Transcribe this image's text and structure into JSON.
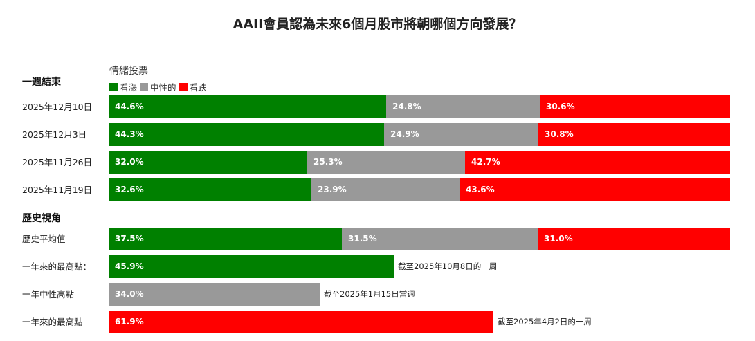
{
  "colors": {
    "bullish": "#008000",
    "neutral": "#999999",
    "bearish": "#ff0000"
  },
  "chart_data": {
    "type": "bar",
    "stacked": true,
    "orientation": "horizontal",
    "title": "AAII會員認為未來6個月股市將朝哪個方向發展？",
    "legend_title": "情緒投票",
    "legend_placement": "top-left",
    "series_names": [
      "看漲",
      "中性的",
      "看跌"
    ],
    "value_suffix": "%",
    "sections": [
      {
        "label": "一週結束",
        "rows": [
          {
            "label": "2025年12月10日",
            "values": [
              44.6,
              24.8,
              30.6
            ]
          },
          {
            "label": "2025年12月3日",
            "values": [
              44.3,
              24.9,
              30.8
            ]
          },
          {
            "label": "2025年11月26日",
            "values": [
              32.0,
              25.3,
              42.7
            ]
          },
          {
            "label": "2025年11月19日",
            "values": [
              32.6,
              23.9,
              43.6
            ]
          }
        ]
      },
      {
        "label": "歷史視角",
        "rows": [
          {
            "label": "歷史平均值",
            "values": [
              37.5,
              31.5,
              31.0
            ]
          },
          {
            "label": "一年來的最高點：",
            "single": {
              "series": 0,
              "value": 45.9
            },
            "note": "截至2025年10月8日的一周"
          },
          {
            "label": "一年中性高點",
            "single": {
              "series": 1,
              "value": 34.0
            },
            "note": "截至2025年1月15日當週"
          },
          {
            "label": "一年來的最高點",
            "single": {
              "series": 2,
              "value": 61.9
            },
            "note": "截至2025年4月2日的一周"
          }
        ]
      }
    ]
  }
}
